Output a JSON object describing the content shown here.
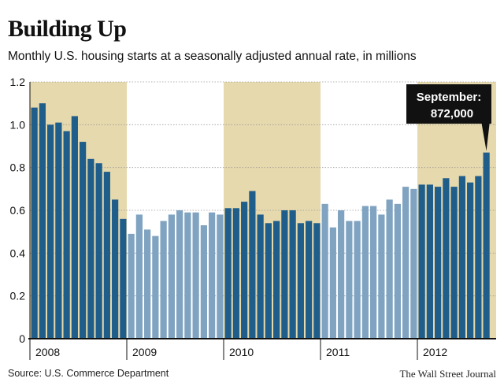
{
  "header": {
    "title": "Building Up",
    "subtitle": "Monthly U.S. housing starts at a seasonally adjusted annual rate, in millions"
  },
  "footer": {
    "source": "Source: U.S. Commerce Department",
    "credit": "The Wall Street Journal"
  },
  "callout": {
    "line1": "September:",
    "line2": "872,000"
  },
  "colors": {
    "bar_dark": "#1f5d8a",
    "bar_light": "#7fa3c0",
    "shade": "#e6d9ad",
    "callout_bg": "#111111",
    "callout_text": "#ffffff"
  },
  "chart_data": {
    "type": "bar",
    "title": "Building Up",
    "subtitle": "Monthly U.S. housing starts at a seasonally adjusted annual rate, in millions",
    "ylim": [
      0,
      1.2
    ],
    "yticks": [
      "0",
      "0.2",
      "0.4",
      "0.6",
      "0.8",
      "1.0",
      "1.2"
    ],
    "year_labels": [
      "2008",
      "2009",
      "2010",
      "2011",
      "2012"
    ],
    "shaded_years": [
      "2008",
      "2010",
      "2012"
    ],
    "grid": true,
    "series": [
      {
        "name": "Housing starts",
        "start": "2008-01",
        "values": [
          1.08,
          1.1,
          1.0,
          1.01,
          0.97,
          1.04,
          0.92,
          0.84,
          0.82,
          0.78,
          0.65,
          0.56,
          0.49,
          0.58,
          0.51,
          0.48,
          0.55,
          0.58,
          0.6,
          0.59,
          0.59,
          0.53,
          0.59,
          0.58,
          0.61,
          0.61,
          0.64,
          0.69,
          0.58,
          0.54,
          0.55,
          0.6,
          0.6,
          0.54,
          0.55,
          0.54,
          0.63,
          0.52,
          0.6,
          0.55,
          0.55,
          0.62,
          0.62,
          0.58,
          0.65,
          0.63,
          0.71,
          0.7,
          0.72,
          0.72,
          0.71,
          0.75,
          0.71,
          0.76,
          0.73,
          0.76,
          0.87
        ]
      }
    ]
  }
}
